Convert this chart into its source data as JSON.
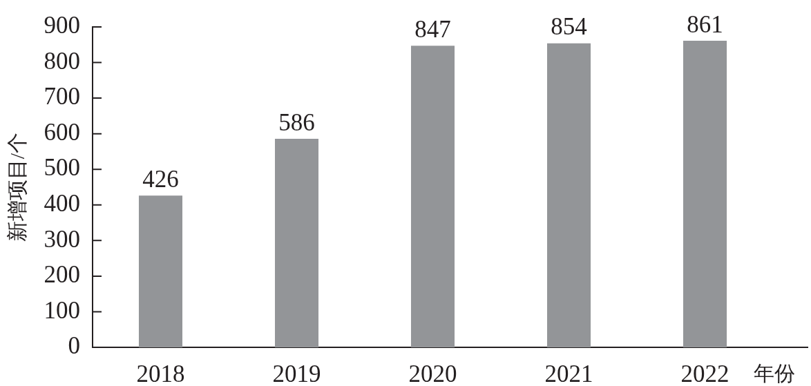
{
  "chart_data": {
    "type": "bar",
    "xlabel": "年份",
    "ylabel": "新增项目/个",
    "categories": [
      "2018",
      "2019",
      "2020",
      "2021",
      "2022"
    ],
    "values": [
      426,
      586,
      847,
      854,
      861
    ],
    "color": "#939598",
    "ylim": [
      0,
      900
    ],
    "yticks": [
      0,
      100,
      200,
      300,
      400,
      500,
      600,
      700,
      800,
      900
    ],
    "data_labels": true
  }
}
